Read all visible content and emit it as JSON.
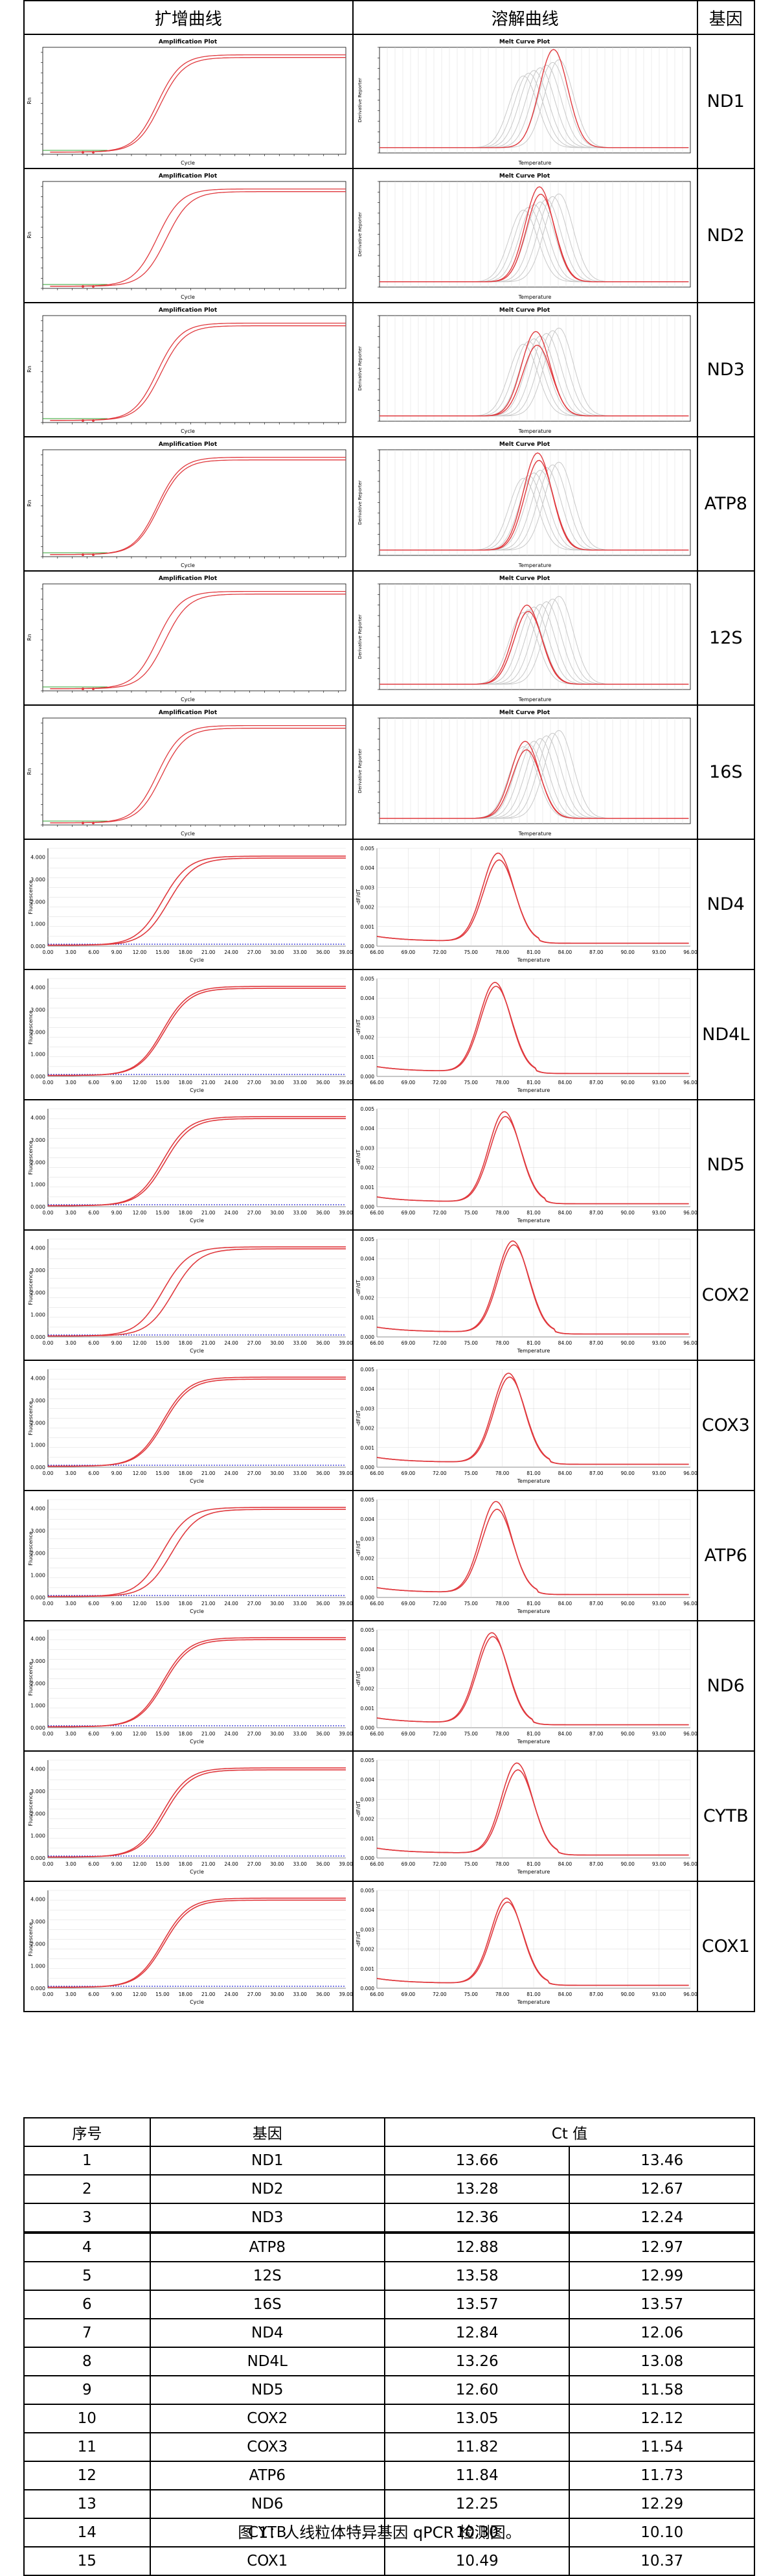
{
  "headers": {
    "amplification": "扩增曲线",
    "melt": "溶解曲线",
    "gene": "基因"
  },
  "plot_titles": {
    "amp_a": "Amplification Plot",
    "melt_a": "Melt Curve Plot"
  },
  "axis_labels": {
    "cycle_a": "Cycle",
    "rn_a": "Rn",
    "temp_a": "Temperature",
    "deriv_a": "Derivative Reporter",
    "cycle_b": "Cycle",
    "fluor_b": "Fluorescence",
    "temp_b": "Temperature",
    "deriv_b": "-dF/dT"
  },
  "colors": {
    "curve": "#e0393e",
    "ghost": "#c8c8c8",
    "threshold_a": "#2ca02c",
    "threshold_b": "#2a2ad6",
    "grid": "#d9d9d9"
  },
  "rows": [
    {
      "gene": "ND1",
      "style": "a",
      "amp_offsets": [
        0,
        0.4
      ],
      "melt_peak_temp": 79.6,
      "melt_peaks": [
        0.98
      ]
    },
    {
      "gene": "ND2",
      "style": "a",
      "amp_offsets": [
        0,
        1.2
      ],
      "melt_peak_temp": 78.0,
      "melt_peaks": [
        0.95,
        0.88
      ]
    },
    {
      "gene": "ND3",
      "style": "a",
      "amp_offsets": [
        0,
        0.5
      ],
      "melt_peak_temp": 77.6,
      "melt_peaks": [
        0.85,
        0.72
      ]
    },
    {
      "gene": "ATP8",
      "style": "a",
      "amp_offsets": [
        0,
        0.2
      ],
      "melt_peak_temp": 77.8,
      "melt_peaks": [
        0.97,
        0.9
      ]
    },
    {
      "gene": "12S",
      "style": "a",
      "amp_offsets": [
        0,
        1.0
      ],
      "melt_peak_temp": 76.6,
      "melt_peaks": [
        0.8,
        0.74
      ]
    },
    {
      "gene": "16S",
      "style": "a",
      "amp_offsets": [
        0,
        0.6
      ],
      "melt_peak_temp": 76.4,
      "melt_peaks": [
        0.78,
        0.7
      ]
    },
    {
      "gene": "ND4",
      "style": "b",
      "amp_offsets": [
        0,
        0.8
      ],
      "melt_peak_temp": 77.6,
      "melt_peaks": [
        0.95,
        0.88
      ]
    },
    {
      "gene": "ND4L",
      "style": "b",
      "amp_offsets": [
        0,
        0.2
      ],
      "melt_peak_temp": 77.3,
      "melt_peaks": [
        0.96,
        0.92
      ]
    },
    {
      "gene": "ND5",
      "style": "b",
      "amp_offsets": [
        0,
        0.3
      ],
      "melt_peak_temp": 78.2,
      "melt_peaks": [
        0.97,
        0.92
      ]
    },
    {
      "gene": "COX2",
      "style": "b",
      "amp_offsets": [
        0,
        1.4
      ],
      "melt_peak_temp": 79.0,
      "melt_peaks": [
        0.98,
        0.94
      ]
    },
    {
      "gene": "COX3",
      "style": "b",
      "amp_offsets": [
        0,
        0.2
      ],
      "melt_peak_temp": 78.6,
      "melt_peaks": [
        0.96,
        0.92
      ]
    },
    {
      "gene": "ATP6",
      "style": "b",
      "amp_offsets": [
        0,
        1.2
      ],
      "melt_peak_temp": 77.4,
      "melt_peaks": [
        0.98,
        0.9
      ]
    },
    {
      "gene": "ND6",
      "style": "b",
      "amp_offsets": [
        0,
        0.2
      ],
      "melt_peak_temp": 77.0,
      "melt_peaks": [
        0.97,
        0.93
      ]
    },
    {
      "gene": "CYTB",
      "style": "b",
      "amp_offsets": [
        0,
        0.3
      ],
      "melt_peak_temp": 79.4,
      "melt_peaks": [
        0.97,
        0.9
      ]
    },
    {
      "gene": "COX1",
      "style": "b",
      "amp_offsets": [
        0,
        0.2
      ],
      "melt_peak_temp": 78.4,
      "melt_peaks": [
        0.92,
        0.88
      ]
    }
  ],
  "ticks_b": {
    "cycle": [
      "0.00",
      "3.00",
      "6.00",
      "9.00",
      "12.00",
      "15.00",
      "18.00",
      "21.00",
      "24.00",
      "27.00",
      "30.00",
      "33.00",
      "36.00",
      "39.00"
    ],
    "temp": [
      "66.00",
      "69.00",
      "72.00",
      "75.00",
      "78.00",
      "81.00",
      "84.00",
      "87.00",
      "90.00",
      "93.00",
      "96.00"
    ]
  },
  "ct_table": {
    "headers": [
      "序号",
      "基因",
      "Ct 值"
    ],
    "rows": [
      [
        "1",
        "ND1",
        "13.66",
        "13.46"
      ],
      [
        "2",
        "ND2",
        "13.28",
        "12.67"
      ],
      [
        "3",
        "ND3",
        "12.36",
        "12.24"
      ],
      [
        "4",
        "ATP8",
        "12.88",
        "12.97"
      ],
      [
        "5",
        "12S",
        "13.58",
        "12.99"
      ],
      [
        "6",
        "16S",
        "13.57",
        "13.57"
      ],
      [
        "7",
        "ND4",
        "12.84",
        "12.06"
      ],
      [
        "8",
        "ND4L",
        "13.26",
        "13.08"
      ],
      [
        "9",
        "ND5",
        "12.60",
        "11.58"
      ],
      [
        "10",
        "COX2",
        "13.05",
        "12.12"
      ],
      [
        "11",
        "COX3",
        "11.82",
        "11.54"
      ],
      [
        "12",
        "ATP6",
        "11.84",
        "11.73"
      ],
      [
        "13",
        "ND6",
        "12.25",
        "12.29"
      ],
      [
        "14",
        "CYTB",
        "10.30",
        "10.10"
      ],
      [
        "15",
        "COX1",
        "10.49",
        "10.37"
      ]
    ]
  },
  "caption": "图 1：人线粒体特异基因 qPCR 检测图。"
}
